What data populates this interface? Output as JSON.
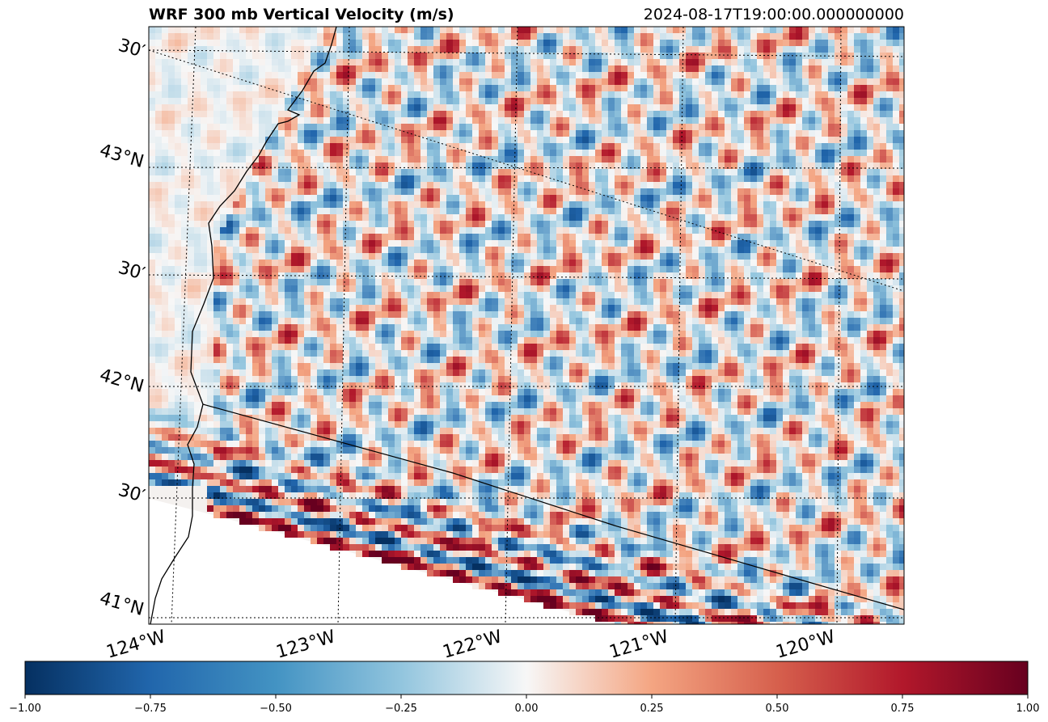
{
  "map": {
    "title": "WRF 300 mb Vertical Velocity (m/s)",
    "timestamp": "2024-08-17T19:00:00.000000000",
    "variable": "vertical velocity",
    "level": "300 mb",
    "units": "m/s",
    "colormap": "RdBu_r",
    "lat_labels": [
      "30′",
      "43°N",
      "30′",
      "42°N",
      "30′",
      "41°N"
    ],
    "lon_labels": [
      "124°W",
      "123°W",
      "122°W",
      "121°W",
      "120°W"
    ],
    "gridlines": "dotted"
  },
  "colorbar": {
    "min": -1.0,
    "max": 1.0,
    "tick_labels": [
      "−1.00",
      "−0.75",
      "−0.50",
      "−0.25",
      "0.00",
      "0.25",
      "0.50",
      "0.75",
      "1.00"
    ],
    "colors": {
      "neg_end": "#053061",
      "neg_mid": "#2166ac",
      "neg_light": "#92c5de",
      "center": "#f7f7f7",
      "pos_light": "#f4a582",
      "pos_mid": "#b2182b",
      "pos_end": "#67001f"
    }
  }
}
